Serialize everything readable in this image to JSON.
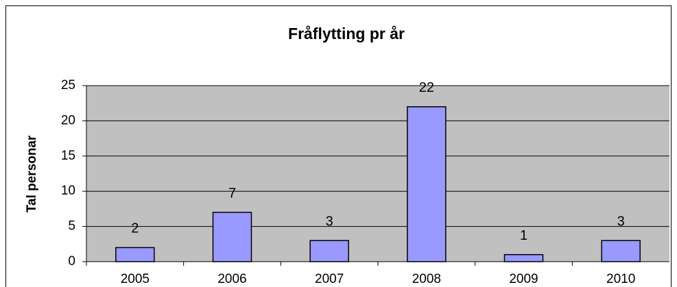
{
  "chart_data": {
    "type": "bar",
    "title": "Fråflytting pr år",
    "y_label": "Tal personar",
    "categories": [
      "2005",
      "2006",
      "2007",
      "2008",
      "2009",
      "2010"
    ],
    "values": [
      2,
      7,
      3,
      22,
      1,
      3
    ],
    "color": "#9999ff",
    "ylim": [
      0,
      25
    ],
    "yticks": [
      0,
      5,
      10,
      15,
      20,
      25
    ],
    "grid": true,
    "data_labels": true
  }
}
